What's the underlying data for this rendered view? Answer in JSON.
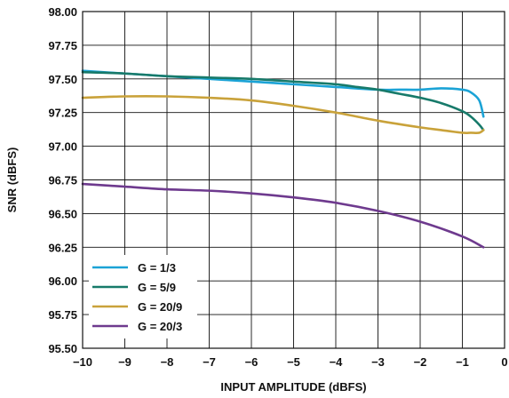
{
  "chart_data": {
    "type": "line",
    "title": "",
    "xlabel": "INPUT AMPLITUDE (dBFS)",
    "ylabel": "SNR (dBFS)",
    "xlim": [
      -10,
      0
    ],
    "ylim": [
      95.5,
      98.0
    ],
    "x_ticks": [
      -10,
      -9,
      -8,
      -7,
      -6,
      -5,
      -4,
      -3,
      -2,
      -1,
      0
    ],
    "x_tick_labels": [
      "−10",
      "−9",
      "−8",
      "−7",
      "−6",
      "−5",
      "−4",
      "−3",
      "−2",
      "−1",
      "0"
    ],
    "y_ticks": [
      95.5,
      95.75,
      96.0,
      96.25,
      96.5,
      96.75,
      97.0,
      97.25,
      97.5,
      97.75,
      98.0
    ],
    "y_tick_labels": [
      "95.50",
      "95.75",
      "96.00",
      "96.25",
      "96.50",
      "96.75",
      "97.00",
      "97.25",
      "97.50",
      "97.75",
      "98.00"
    ],
    "grid": true,
    "legend_position": "bottom-left",
    "series": [
      {
        "name": "G = 1/3",
        "color": "#1ba3d6",
        "x": [
          -10,
          -9,
          -8,
          -7,
          -6,
          -5,
          -4,
          -3,
          -2.5,
          -2,
          -1.5,
          -1,
          -0.8,
          -0.6,
          -0.5
        ],
        "y": [
          97.56,
          97.54,
          97.52,
          97.5,
          97.48,
          97.46,
          97.44,
          97.42,
          97.42,
          97.42,
          97.43,
          97.42,
          97.4,
          97.34,
          97.22
        ]
      },
      {
        "name": "G = 5/9",
        "color": "#177a6a",
        "x": [
          -10,
          -9,
          -8,
          -7,
          -6,
          -5,
          -4,
          -3.5,
          -3,
          -2.5,
          -2,
          -1.5,
          -1,
          -0.8,
          -0.6,
          -0.5
        ],
        "y": [
          97.55,
          97.54,
          97.52,
          97.51,
          97.5,
          97.48,
          97.46,
          97.44,
          97.42,
          97.39,
          97.36,
          97.32,
          97.26,
          97.22,
          97.16,
          97.12
        ]
      },
      {
        "name": "G = 20/9",
        "color": "#c9a23a",
        "x": [
          -10,
          -9,
          -8,
          -7,
          -6,
          -5,
          -4,
          -3,
          -2,
          -1.5,
          -1,
          -0.8,
          -0.6,
          -0.5
        ],
        "y": [
          97.36,
          97.37,
          97.37,
          97.36,
          97.34,
          97.3,
          97.25,
          97.19,
          97.14,
          97.12,
          97.1,
          97.1,
          97.1,
          97.12
        ]
      },
      {
        "name": "G = 20/3",
        "color": "#6e3a8e",
        "x": [
          -10,
          -9,
          -8,
          -7,
          -6,
          -5,
          -4,
          -3,
          -2,
          -1,
          -0.5
        ],
        "y": [
          96.72,
          96.7,
          96.68,
          96.67,
          96.65,
          96.62,
          96.58,
          96.52,
          96.44,
          96.33,
          96.25
        ]
      }
    ]
  }
}
